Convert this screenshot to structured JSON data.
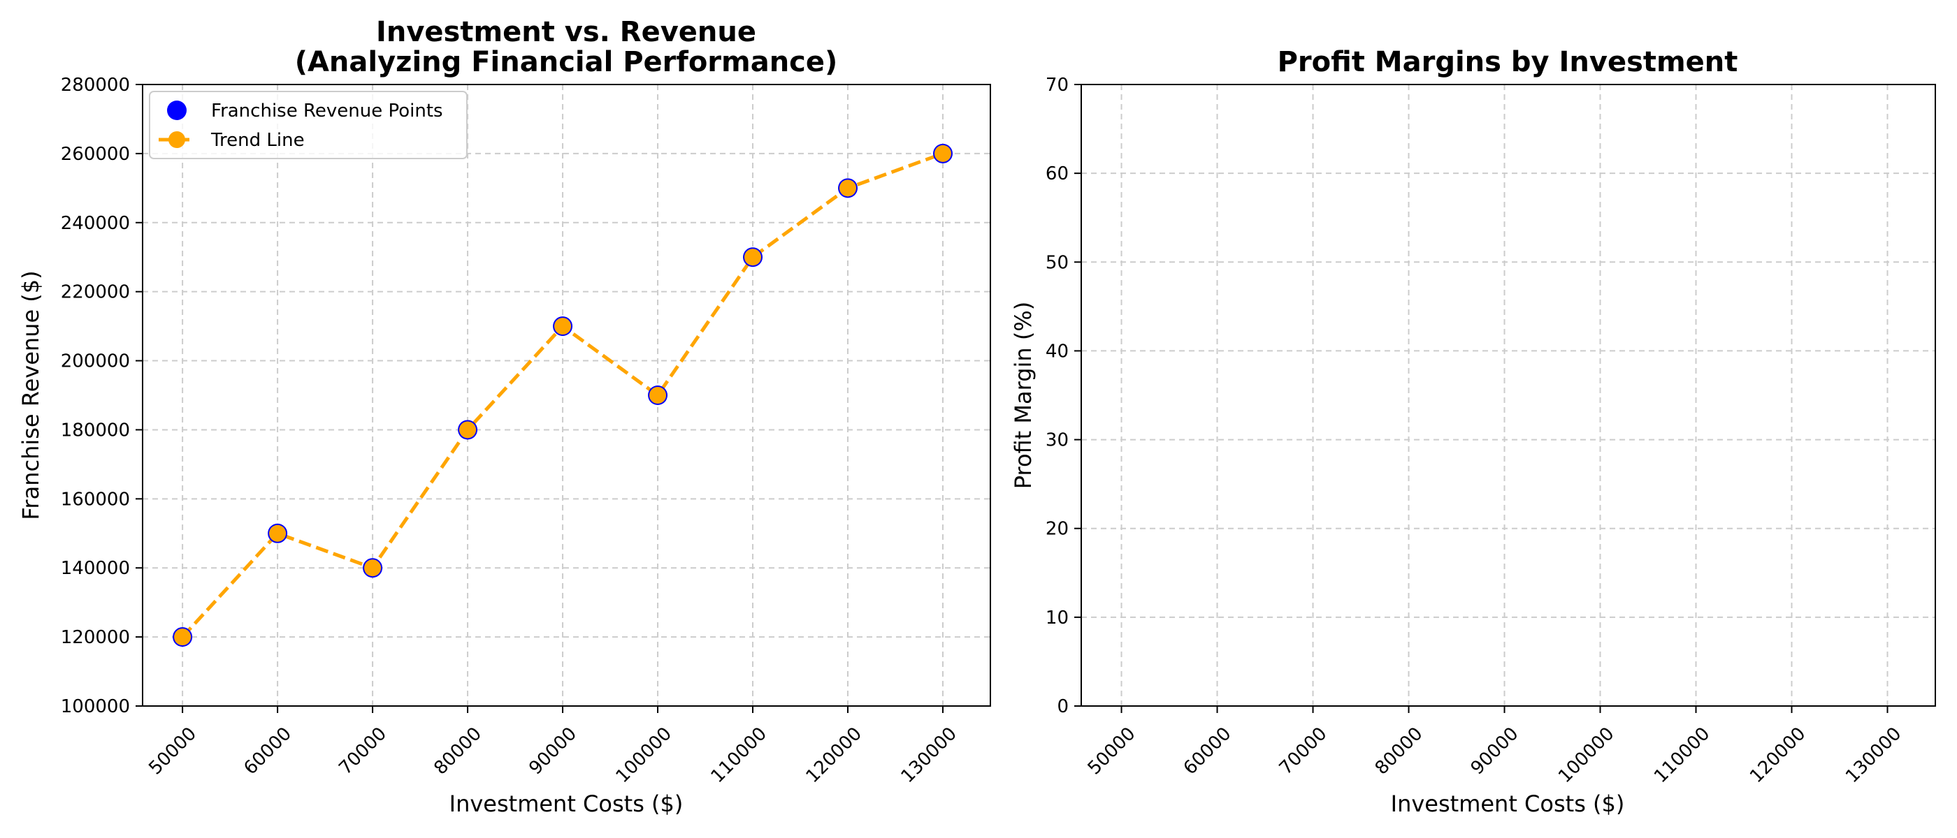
{
  "chart_data": [
    {
      "type": "line",
      "title_line1": "Investment vs. Revenue",
      "title_line2": "(Analyzing Financial Performance)",
      "xlabel": "Investment Costs ($)",
      "ylabel": "Franchise Revenue ($)",
      "x": [
        50000,
        60000,
        70000,
        80000,
        90000,
        100000,
        110000,
        120000,
        130000
      ],
      "x_tick_labels": [
        "50000",
        "60000",
        "70000",
        "80000",
        "90000",
        "100000",
        "110000",
        "120000",
        "130000"
      ],
      "ylim": [
        100000,
        280000
      ],
      "y_ticks": [
        100000,
        120000,
        140000,
        160000,
        180000,
        200000,
        220000,
        240000,
        260000,
        280000
      ],
      "y_tick_labels": [
        "100000",
        "120000",
        "140000",
        "160000",
        "180000",
        "200000",
        "220000",
        "240000",
        "260000",
        "280000"
      ],
      "series": [
        {
          "name": "Franchise Revenue Points",
          "kind": "scatter",
          "color": "#0000ff",
          "values": [
            120000,
            150000,
            140000,
            180000,
            210000,
            190000,
            230000,
            250000,
            260000
          ]
        },
        {
          "name": "Trend Line",
          "kind": "line",
          "style": "dashed",
          "color": "#ffa500",
          "values": [
            120000,
            150000,
            140000,
            180000,
            210000,
            190000,
            230000,
            250000,
            260000
          ]
        }
      ],
      "grid": true,
      "legend_position": "upper left"
    },
    {
      "type": "bar",
      "title": "Profit Margins by Investment",
      "xlabel": "Investment Costs ($)",
      "ylabel": "Profit Margin (%)",
      "x": [
        50000,
        60000,
        70000,
        80000,
        90000,
        100000,
        110000,
        120000,
        130000
      ],
      "x_tick_labels": [
        "50000",
        "60000",
        "70000",
        "80000",
        "90000",
        "100000",
        "110000",
        "120000",
        "130000"
      ],
      "ylim": [
        0,
        70
      ],
      "y_ticks": [
        0,
        10,
        20,
        30,
        40,
        50,
        60,
        70
      ],
      "y_tick_labels": [
        "0",
        "10",
        "20",
        "30",
        "40",
        "50",
        "60",
        "70"
      ],
      "series": [],
      "grid": true
    }
  ]
}
